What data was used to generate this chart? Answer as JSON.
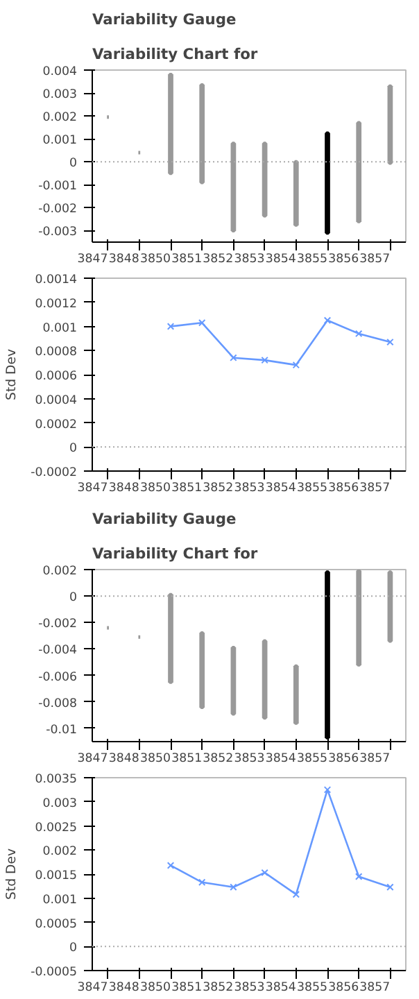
{
  "chart_data": [
    {
      "type": "bar",
      "title": "Variability Gauge",
      "subtitle": "Variability Chart for",
      "categories": [
        "3847",
        "3848",
        "3850",
        "3851",
        "3852",
        "3853",
        "3854",
        "3855",
        "3856",
        "3857"
      ],
      "base": [
        0.00195,
        0.0004,
        -0.0005,
        -0.0009,
        -0.003,
        -0.00235,
        -0.00275,
        -0.0031,
        -0.0026,
        -5e-05
      ],
      "values": [
        0,
        0,
        0.0043,
        0.00425,
        0.0038,
        0.00315,
        0.00275,
        0.00435,
        0.0043,
        0.00335
      ],
      "colors": [
        "#999999",
        "#999999",
        "#999999",
        "#999999",
        "#999999",
        "#999999",
        "#999999",
        "#000000",
        "#999999",
        "#999999"
      ],
      "ylim": [
        -0.0035,
        0.004
      ],
      "yticks": [
        -0.003,
        -0.002,
        -0.001,
        0,
        0.001,
        0.002,
        0.003,
        0.004
      ],
      "grid": false,
      "ref_lines": [
        {
          "axis": "y",
          "value": 0,
          "color": "#aaaaaa",
          "line_style": "dotted"
        }
      ]
    },
    {
      "type": "line",
      "ylabel": "Std Dev",
      "categories": [
        "3847",
        "3848",
        "3850",
        "3851",
        "3852",
        "3853",
        "3854",
        "3855",
        "3856",
        "3857"
      ],
      "series": [
        {
          "color": "#6699ff",
          "values": [
            null,
            null,
            0.001,
            0.00103,
            0.00074,
            0.00072,
            0.00068,
            0.00105,
            0.00094,
            0.00087
          ]
        }
      ],
      "marker": "cross",
      "ylim": [
        -0.0002,
        0.0014
      ],
      "yticks": [
        -0.0002,
        0,
        0.0002,
        0.0004,
        0.0006,
        0.0008,
        0.001,
        0.0012,
        0.0014
      ],
      "grid": false,
      "ref_lines": [
        {
          "axis": "y",
          "value": 0,
          "color": "#aaaaaa",
          "line_style": "dotted"
        }
      ]
    },
    {
      "type": "bar",
      "title": "Variability Gauge",
      "subtitle": "Variability Chart for",
      "categories": [
        "3847",
        "3848",
        "3850",
        "3851",
        "3852",
        "3853",
        "3854",
        "3855",
        "3856",
        "3857"
      ],
      "base": [
        -0.0024,
        -0.0031,
        -0.0065,
        -0.0084,
        -0.0089,
        -0.0092,
        -0.0096,
        -0.0107,
        -0.0052,
        -0.0034
      ],
      "values": [
        0,
        0,
        0.0066,
        0.0056,
        0.005,
        0.0058,
        0.0043,
        0.0125,
        0.0071,
        0.0052
      ],
      "colors": [
        "#999999",
        "#999999",
        "#999999",
        "#999999",
        "#999999",
        "#999999",
        "#999999",
        "#000000",
        "#999999",
        "#999999"
      ],
      "ylim": [
        -0.011,
        0.002
      ],
      "yticks": [
        -0.01,
        -0.008,
        -0.006,
        -0.004,
        -0.002,
        0,
        0.002
      ],
      "grid": false,
      "ref_lines": [
        {
          "axis": "y",
          "value": 0,
          "color": "#aaaaaa",
          "line_style": "dotted"
        }
      ]
    },
    {
      "type": "line",
      "ylabel": "Std Dev",
      "categories": [
        "3847",
        "3848",
        "3850",
        "3851",
        "3852",
        "3853",
        "3854",
        "3855",
        "3856",
        "3857"
      ],
      "series": [
        {
          "color": "#6699ff",
          "values": [
            null,
            null,
            0.00168,
            0.00133,
            0.00123,
            0.00153,
            0.00108,
            0.00325,
            0.00145,
            0.00123
          ]
        }
      ],
      "marker": "cross",
      "ylim": [
        -0.0005,
        0.0035
      ],
      "yticks": [
        -0.0005,
        0,
        0.0005,
        0.001,
        0.0015,
        0.002,
        0.0025,
        0.003,
        0.0035
      ],
      "grid": false,
      "ref_lines": [
        {
          "axis": "y",
          "value": 0,
          "color": "#aaaaaa",
          "line_style": "dotted"
        }
      ]
    }
  ]
}
